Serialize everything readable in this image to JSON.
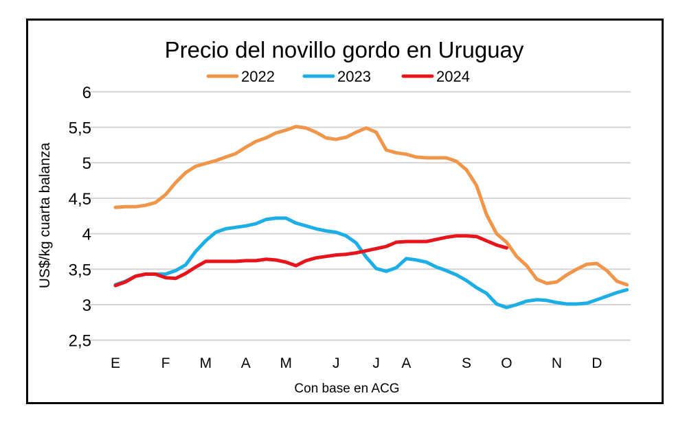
{
  "chart_data": {
    "type": "line",
    "title": "Precio del novillo gordo en Uruguay",
    "ylabel": "US$/kg cuarta balanza",
    "xlabel": "Con base en ACG",
    "ylim": [
      2.5,
      6
    ],
    "yticks": [
      "2,5",
      "3",
      "3,5",
      "4",
      "4,5",
      "5",
      "5,5",
      "6"
    ],
    "ytick_values": [
      2.5,
      3,
      3.5,
      4,
      4.5,
      5,
      5.5,
      6
    ],
    "grid": "horizontal",
    "legend": "top",
    "x_unit": "week of year",
    "x_ticks": [
      {
        "label": "E",
        "week": 0
      },
      {
        "label": "F",
        "week": 5
      },
      {
        "label": "M",
        "week": 9
      },
      {
        "label": "A",
        "week": 13
      },
      {
        "label": "M",
        "week": 17
      },
      {
        "label": "J",
        "week": 22
      },
      {
        "label": "J",
        "week": 26
      },
      {
        "label": "A",
        "week": 29
      },
      {
        "label": "S",
        "week": 35
      },
      {
        "label": "O",
        "week": 39
      },
      {
        "label": "N",
        "week": 44
      },
      {
        "label": "D",
        "week": 48
      }
    ],
    "series": [
      {
        "name": "2022",
        "color": "#F0964A",
        "values": [
          4.37,
          4.38,
          4.38,
          4.4,
          4.44,
          4.55,
          4.72,
          4.86,
          4.95,
          4.99,
          5.03,
          5.08,
          5.13,
          5.22,
          5.3,
          5.35,
          5.42,
          5.46,
          5.51,
          5.49,
          5.43,
          5.35,
          5.33,
          5.36,
          5.43,
          5.49,
          5.43,
          5.18,
          5.14,
          5.12,
          5.08,
          5.07,
          5.07,
          5.07,
          5.02,
          4.9,
          4.68,
          4.27,
          4.0,
          3.88,
          3.68,
          3.55,
          3.36,
          3.3,
          3.32,
          3.42,
          3.5,
          3.57,
          3.58,
          3.48,
          3.33,
          3.28
        ]
      },
      {
        "name": "2023",
        "color": "#1CAEE4",
        "values": [
          3.28,
          3.33,
          3.4,
          3.43,
          3.43,
          3.43,
          3.48,
          3.56,
          3.75,
          3.9,
          4.02,
          4.07,
          4.09,
          4.11,
          4.14,
          4.2,
          4.22,
          4.22,
          4.15,
          4.11,
          4.07,
          4.04,
          4.02,
          3.97,
          3.87,
          3.67,
          3.51,
          3.47,
          3.52,
          3.65,
          3.63,
          3.6,
          3.53,
          3.48,
          3.42,
          3.34,
          3.24,
          3.16,
          3.01,
          2.96,
          3.0,
          3.05,
          3.07,
          3.06,
          3.03,
          3.01,
          3.01,
          3.02,
          3.07,
          3.12,
          3.17,
          3.21
        ]
      },
      {
        "name": "2024",
        "color": "#E8141B",
        "values": [
          3.27,
          3.32,
          3.4,
          3.43,
          3.43,
          3.38,
          3.37,
          3.44,
          3.53,
          3.61,
          3.61,
          3.61,
          3.61,
          3.62,
          3.62,
          3.64,
          3.63,
          3.6,
          3.55,
          3.62,
          3.66,
          3.68,
          3.7,
          3.71,
          3.73,
          3.76,
          3.79,
          3.82,
          3.88,
          3.89,
          3.89,
          3.89,
          3.92,
          3.95,
          3.97,
          3.97,
          3.96,
          3.9,
          3.84,
          3.8
        ]
      }
    ]
  }
}
